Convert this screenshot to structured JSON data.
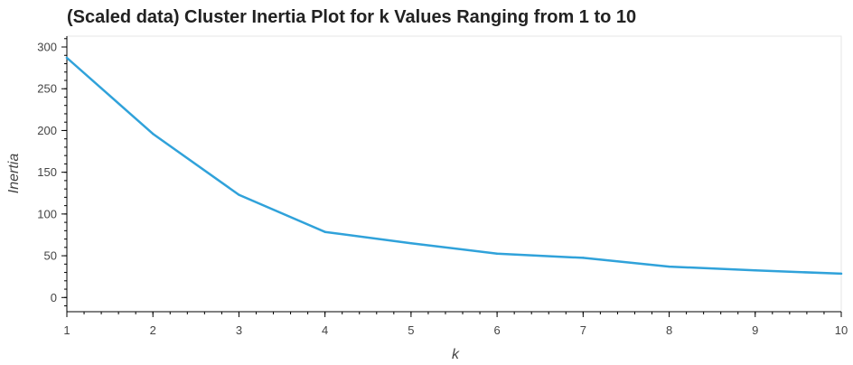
{
  "chart_data": {
    "type": "line",
    "title": "(Scaled data) Cluster Inertia Plot for k Values Ranging from 1 to 10",
    "xlabel": "k",
    "ylabel": "Inertia",
    "xlim": [
      1,
      10
    ],
    "ylim": [
      -17,
      313
    ],
    "xticks": [
      1,
      2,
      3,
      4,
      5,
      6,
      7,
      8,
      9,
      10
    ],
    "yticks": [
      0,
      50,
      100,
      150,
      200,
      250,
      300
    ],
    "grid": false,
    "series": [
      {
        "x": [
          1,
          2,
          3,
          4,
          5,
          6,
          7,
          8,
          9,
          10
        ],
        "values": [
          287,
          196,
          123,
          78.5,
          65,
          52.5,
          47.5,
          37,
          32.5,
          28.5
        ],
        "color": "#30a2da"
      }
    ]
  }
}
